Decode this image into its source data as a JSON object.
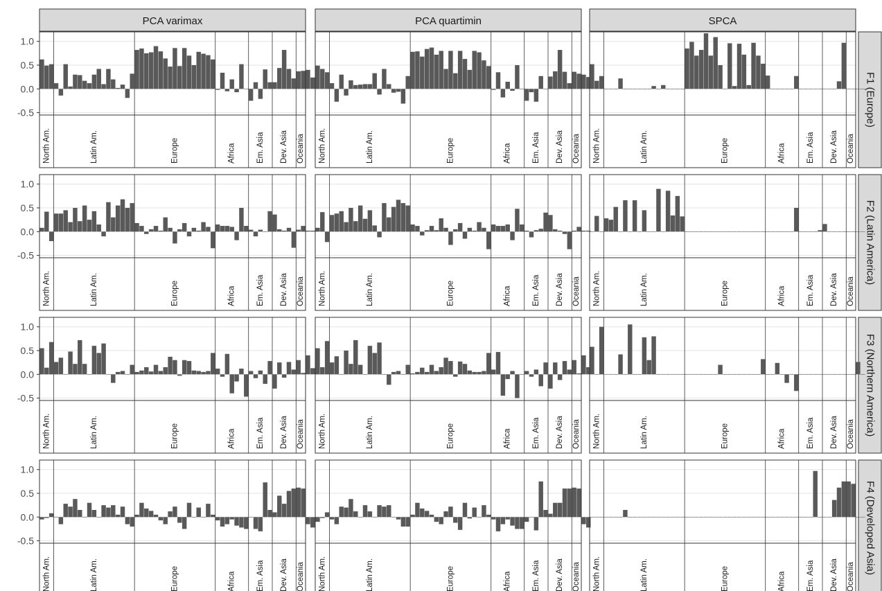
{
  "chart_data": {
    "type": "bar",
    "columns": [
      "PCA varimax",
      "PCA quartimin",
      "SPCA"
    ],
    "rows": [
      "F1 (Europe)",
      "F2 (Latin America)",
      "F3 (Northern America)",
      "F4 (Developed Asia)"
    ],
    "regions": [
      {
        "label": "North Am.",
        "count": 3
      },
      {
        "label": "Latin Am.",
        "count": 17
      },
      {
        "label": "Europe",
        "count": 17
      },
      {
        "label": "Africa",
        "count": 7
      },
      {
        "label": "Em. Asia",
        "count": 5
      },
      {
        "label": "Dev. Asia",
        "count": 5
      },
      {
        "label": "Oceania",
        "count": 2
      }
    ],
    "y_ticks": [
      1.0,
      0.5,
      0.0,
      -0.5
    ],
    "y_tick_labels": [
      "1.0",
      "0.5",
      "0.0",
      "-0.5"
    ],
    "ylim": [
      -0.55,
      1.2
    ],
    "bar_color": "#595959",
    "strip_color": "#d9d9d9",
    "grid": true,
    "panels": [
      [
        [
          0.62,
          0.49,
          0.52,
          0.12,
          -0.14,
          0.52,
          0.05,
          0.3,
          0.29,
          0.17,
          0.12,
          0.3,
          0.42,
          0.1,
          0.42,
          0.2,
          0.02,
          0.09,
          -0.19,
          0.32,
          0.82,
          0.85,
          0.75,
          0.77,
          0.9,
          0.79,
          0.64,
          0.47,
          0.86,
          0.48,
          0.86,
          0.7,
          0.5,
          0.78,
          0.74,
          0.71,
          0.62,
          -0.02,
          0.34,
          -0.05,
          0.2,
          -0.07,
          0.52,
          0.0,
          -0.25,
          0.14,
          -0.21,
          0.41,
          0.14,
          0.14,
          0.44,
          0.82,
          0.42,
          0.22,
          0.37,
          0.38,
          0.4,
          0.24
        ],
        [
          0.49,
          0.42,
          0.35,
          0.12,
          -0.27,
          0.3,
          -0.14,
          0.18,
          0.08,
          0.09,
          0.1,
          0.1,
          0.33,
          -0.12,
          0.42,
          0.1,
          -0.08,
          -0.06,
          -0.31,
          0.27,
          0.78,
          0.79,
          0.68,
          0.84,
          0.87,
          0.72,
          0.8,
          0.42,
          0.8,
          0.33,
          0.8,
          0.63,
          0.4,
          0.8,
          0.77,
          0.6,
          0.48,
          -0.02,
          0.35,
          -0.18,
          0.15,
          -0.04,
          0.5,
          0.0,
          -0.25,
          -0.07,
          -0.27,
          0.27,
          0.0,
          0.26,
          0.37,
          0.82,
          0.36,
          0.12,
          0.36,
          0.32,
          0.3,
          0.25
        ],
        [
          0.52,
          0.17,
          0.27,
          0.0,
          0.0,
          0.0,
          0.22,
          0.0,
          0.0,
          0.0,
          0.0,
          0.0,
          0.0,
          0.06,
          0.0,
          0.08,
          0.0,
          0.0,
          0.0,
          0.0,
          0.85,
          0.99,
          0.7,
          0.82,
          1.17,
          0.7,
          1.09,
          0.5,
          0.0,
          0.96,
          0.06,
          0.95,
          0.72,
          0.08,
          0.97,
          0.7,
          0.53,
          0.28,
          0.0,
          0.0,
          0.0,
          0.0,
          0.0,
          0.27,
          0.0,
          0.0,
          0.0,
          0.0,
          0.0,
          0.0,
          0.0,
          0.0,
          0.16,
          0.97,
          0.0,
          0.0,
          0.0,
          0.0
        ]
      ],
      [
        [
          0.08,
          0.42,
          -0.2,
          0.38,
          0.38,
          0.45,
          0.2,
          0.5,
          0.22,
          0.55,
          0.25,
          0.43,
          0.15,
          -0.1,
          0.62,
          0.3,
          0.55,
          0.68,
          0.5,
          0.6,
          0.18,
          0.12,
          -0.05,
          0.05,
          0.12,
          0.02,
          0.3,
          0.08,
          -0.25,
          0.05,
          0.18,
          -0.1,
          0.08,
          0.02,
          0.2,
          0.1,
          -0.35,
          0.15,
          0.12,
          0.12,
          0.1,
          -0.18,
          0.5,
          0.12,
          0.04,
          -0.1,
          0.04,
          0.0,
          0.43,
          0.36,
          0.05,
          0.02,
          0.08,
          -0.34,
          0.04,
          0.12,
          0.02,
          0.02
        ],
        [
          0.08,
          0.41,
          -0.22,
          0.35,
          0.38,
          0.43,
          0.2,
          0.5,
          0.22,
          0.55,
          0.27,
          0.45,
          0.13,
          -0.12,
          0.6,
          0.3,
          0.52,
          0.67,
          0.6,
          0.55,
          0.15,
          0.12,
          -0.08,
          0.03,
          0.12,
          0.03,
          0.28,
          0.08,
          -0.28,
          0.05,
          0.18,
          -0.15,
          0.08,
          0.02,
          0.2,
          0.08,
          -0.37,
          0.15,
          0.12,
          0.12,
          0.15,
          -0.18,
          0.48,
          0.15,
          0.02,
          -0.12,
          0.03,
          0.06,
          0.4,
          0.35,
          0.05,
          0.02,
          -0.05,
          -0.37,
          0.02,
          0.1,
          0.02,
          0.02
        ],
        [
          0.0,
          0.33,
          0.0,
          0.28,
          0.25,
          0.52,
          0.0,
          0.66,
          0.0,
          0.66,
          0.0,
          0.45,
          0.0,
          0.0,
          0.9,
          0.0,
          0.86,
          0.34,
          0.75,
          0.32,
          0.0,
          0.0,
          0.0,
          0.0,
          0.0,
          0.0,
          0.0,
          0.0,
          0.0,
          0.0,
          0.0,
          0.0,
          0.0,
          0.0,
          0.0,
          0.0,
          0.0,
          0.0,
          0.0,
          0.0,
          0.0,
          0.0,
          0.0,
          0.5,
          0.0,
          0.0,
          0.0,
          0.0,
          0.03,
          0.16,
          0.0,
          0.0,
          0.0,
          0.0,
          0.0,
          0.0,
          0.0,
          0.0
        ]
      ],
      [
        [
          0.55,
          0.14,
          0.68,
          0.26,
          0.35,
          0.0,
          0.48,
          0.22,
          0.72,
          0.22,
          0.0,
          0.6,
          0.45,
          0.65,
          0.0,
          -0.18,
          0.05,
          0.07,
          0.0,
          0.2,
          0.05,
          0.08,
          0.15,
          0.06,
          0.2,
          0.07,
          0.15,
          0.37,
          0.3,
          -0.03,
          0.3,
          0.28,
          0.08,
          0.07,
          0.05,
          0.07,
          0.45,
          0.12,
          -0.05,
          0.43,
          -0.4,
          -0.15,
          0.12,
          -0.47,
          0.07,
          -0.08,
          0.08,
          -0.2,
          0.28,
          -0.3,
          0.25,
          -0.07,
          0.26,
          0.1,
          0.3,
          0.03,
          0.4,
          0.13
        ],
        [
          0.55,
          0.15,
          0.7,
          0.25,
          0.38,
          0.0,
          0.5,
          0.22,
          0.72,
          0.2,
          0.0,
          0.6,
          0.45,
          0.67,
          0.0,
          -0.22,
          0.05,
          0.07,
          0.0,
          0.2,
          0.02,
          0.05,
          0.14,
          0.05,
          0.2,
          0.07,
          0.15,
          0.35,
          0.28,
          -0.05,
          0.27,
          0.22,
          0.08,
          0.05,
          0.05,
          0.07,
          0.45,
          0.1,
          0.47,
          -0.45,
          -0.1,
          0.07,
          -0.5,
          0.0,
          0.07,
          -0.05,
          0.1,
          -0.25,
          0.25,
          -0.3,
          0.25,
          -0.12,
          0.28,
          0.1,
          0.3,
          0.02,
          0.4,
          0.15
        ],
        [
          0.58,
          0.0,
          1.0,
          0.0,
          0.0,
          0.0,
          0.42,
          0.0,
          1.05,
          0.0,
          0.0,
          0.78,
          0.3,
          0.8,
          0.0,
          0.0,
          0.0,
          0.0,
          0.0,
          0.0,
          0.0,
          0.0,
          0.0,
          0.0,
          0.0,
          0.0,
          0.0,
          0.2,
          0.0,
          0.0,
          0.0,
          0.0,
          0.0,
          0.0,
          0.0,
          0.0,
          0.32,
          0.0,
          0.0,
          0.24,
          0.0,
          -0.18,
          0.0,
          -0.35,
          0.0,
          0.0,
          0.0,
          0.0,
          0.0,
          0.0,
          0.0,
          0.0,
          0.0,
          0.0,
          0.0,
          0.0,
          0.26,
          0.0
        ]
      ],
      [
        [
          -0.05,
          -0.02,
          0.08,
          0.0,
          -0.15,
          0.28,
          0.22,
          0.38,
          0.15,
          0.0,
          0.3,
          0.15,
          0.0,
          0.25,
          0.2,
          0.25,
          0.05,
          0.22,
          -0.15,
          -0.2,
          0.05,
          0.3,
          0.18,
          0.13,
          0.05,
          -0.07,
          -0.15,
          0.12,
          0.22,
          -0.12,
          -0.25,
          0.3,
          0.0,
          0.2,
          0.0,
          0.28,
          0.05,
          -0.07,
          -0.2,
          -0.15,
          -0.05,
          -0.18,
          -0.22,
          -0.25,
          0.0,
          -0.25,
          -0.3,
          0.73,
          0.15,
          0.1,
          0.45,
          0.28,
          0.55,
          0.6,
          0.62,
          0.6,
          -0.15,
          -0.22
        ],
        [
          -0.1,
          -0.02,
          0.1,
          -0.05,
          -0.15,
          0.22,
          0.2,
          0.38,
          0.12,
          0.0,
          0.25,
          0.12,
          0.0,
          0.25,
          0.22,
          0.25,
          0.0,
          -0.05,
          -0.2,
          -0.2,
          0.05,
          0.3,
          0.18,
          0.13,
          0.05,
          -0.1,
          -0.15,
          0.12,
          0.22,
          -0.12,
          -0.27,
          0.3,
          -0.03,
          0.2,
          0.0,
          0.25,
          0.05,
          -0.05,
          -0.3,
          -0.15,
          -0.05,
          -0.18,
          -0.25,
          -0.25,
          -0.1,
          0.0,
          -0.28,
          0.75,
          0.15,
          0.07,
          0.3,
          0.3,
          0.6,
          0.6,
          0.62,
          0.6,
          -0.15,
          -0.22
        ],
        [
          0.0,
          0.0,
          0.0,
          0.0,
          0.0,
          0.0,
          0.0,
          0.15,
          0.0,
          0.0,
          0.0,
          0.0,
          0.0,
          0.0,
          0.0,
          0.0,
          0.0,
          0.0,
          0.0,
          0.0,
          0.0,
          0.0,
          0.0,
          0.0,
          0.0,
          0.0,
          0.0,
          0.0,
          0.0,
          0.0,
          0.0,
          0.0,
          0.0,
          0.0,
          0.0,
          0.0,
          0.0,
          0.0,
          0.0,
          0.0,
          0.0,
          0.0,
          0.0,
          0.0,
          0.0,
          0.0,
          0.0,
          0.97,
          0.0,
          0.0,
          0.0,
          0.36,
          0.62,
          0.75,
          0.75,
          0.7,
          0.0,
          0.0
        ]
      ]
    ]
  }
}
